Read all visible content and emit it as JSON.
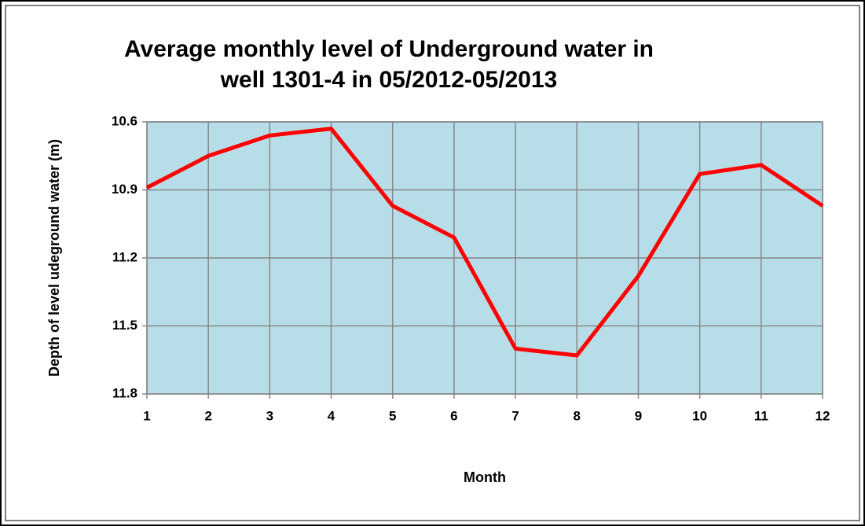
{
  "chart_data": {
    "type": "line",
    "title": [
      "Average monthly level of Underground water  in",
      "well 1301-4 in 05/2012-05/2013"
    ],
    "x_label": "Month",
    "y_label": "Depth of level udeground water (m)",
    "x": [
      1,
      2,
      3,
      4,
      5,
      6,
      7,
      8,
      9,
      10,
      11,
      12
    ],
    "series": [
      {
        "name": "Depth",
        "color": "#ff0000",
        "values": [
          10.89,
          10.75,
          10.66,
          10.63,
          10.97,
          11.11,
          11.6,
          11.63,
          11.28,
          10.83,
          10.79,
          10.97
        ]
      }
    ],
    "xlim": [
      1,
      12
    ],
    "xticks": [
      1,
      2,
      3,
      4,
      5,
      6,
      7,
      8,
      9,
      10,
      11,
      12
    ],
    "ylim": [
      10.6,
      11.8
    ],
    "yticks": [
      10.6,
      10.9,
      11.2,
      11.5,
      11.8
    ],
    "y_inverted": true,
    "grid": true,
    "plot_background": "#b7dde8"
  }
}
